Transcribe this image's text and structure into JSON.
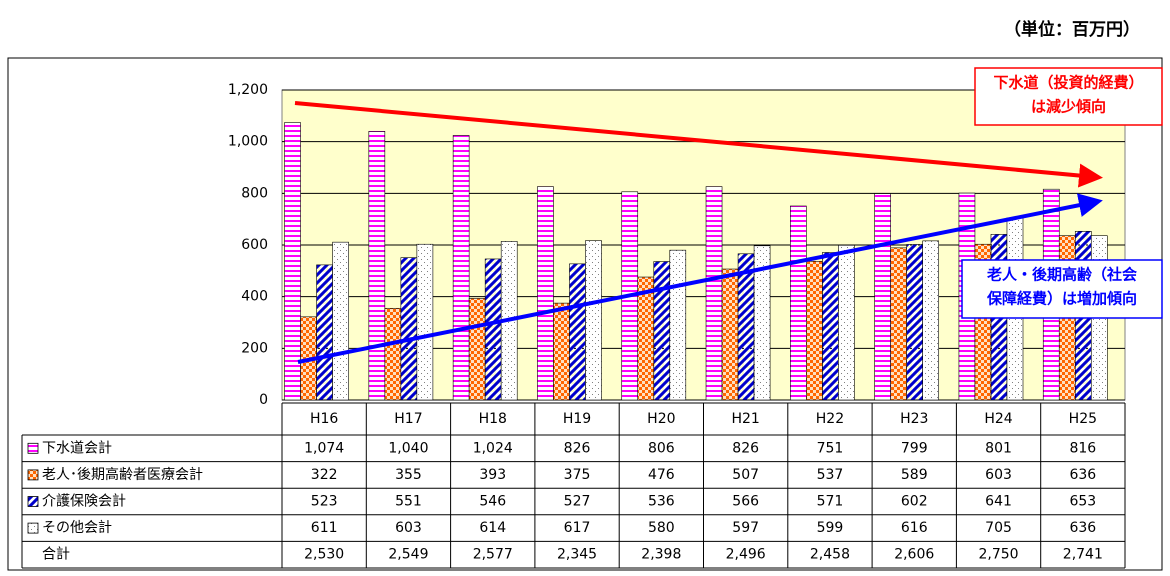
{
  "chart_data": {
    "type": "bar",
    "unit_label": "（単位：百万円）",
    "categories": [
      "H16",
      "H17",
      "H18",
      "H19",
      "H20",
      "H21",
      "H22",
      "H23",
      "H24",
      "H25"
    ],
    "series": [
      {
        "name": "下水道会計",
        "color": "#ff00ff",
        "values": [
          1074,
          1040,
          1024,
          826,
          806,
          826,
          751,
          799,
          801,
          816
        ],
        "value_labels": [
          "1,074",
          "1,040",
          "1,024",
          "826",
          "806",
          "826",
          "751",
          "799",
          "801",
          "816"
        ]
      },
      {
        "name": "老人･後期高齢者医療会計",
        "color": "#ff6600",
        "values": [
          322,
          355,
          393,
          375,
          476,
          507,
          537,
          589,
          603,
          636
        ],
        "value_labels": [
          "322",
          "355",
          "393",
          "375",
          "476",
          "507",
          "537",
          "589",
          "603",
          "636"
        ]
      },
      {
        "name": "介護保険会計",
        "color": "#0000cc",
        "values": [
          523,
          551,
          546,
          527,
          536,
          566,
          571,
          602,
          641,
          653
        ],
        "value_labels": [
          "523",
          "551",
          "546",
          "527",
          "536",
          "566",
          "571",
          "602",
          "641",
          "653"
        ]
      },
      {
        "name": "その他会計",
        "color": "#808080",
        "values": [
          611,
          603,
          614,
          617,
          580,
          597,
          599,
          616,
          705,
          636
        ],
        "value_labels": [
          "611",
          "603",
          "614",
          "617",
          "580",
          "597",
          "599",
          "616",
          "705",
          "636"
        ]
      }
    ],
    "totals": {
      "name": "合計",
      "values": [
        2530,
        2549,
        2577,
        2345,
        2398,
        2496,
        2458,
        2606,
        2750,
        2741
      ],
      "value_labels": [
        "2,530",
        "2,549",
        "2,577",
        "2,345",
        "2,398",
        "2,496",
        "2,458",
        "2,606",
        "2,750",
        "2,741"
      ]
    },
    "ylim": [
      0,
      1200
    ],
    "yticks": [
      0,
      200,
      400,
      600,
      800,
      {
        "value": 1000,
        "label": "1,000"
      },
      {
        "value": 1200,
        "label": "1,200"
      }
    ],
    "grid": true,
    "plot_background": "#ffffcc",
    "annotations": [
      {
        "lines": [
          "下水道（投資的経費）",
          "は減少傾向"
        ],
        "color": "#ff0000"
      },
      {
        "lines": [
          "老人・後期高齢（社会",
          "保障経費）は増加傾向"
        ],
        "color": "#0000ff"
      }
    ]
  }
}
